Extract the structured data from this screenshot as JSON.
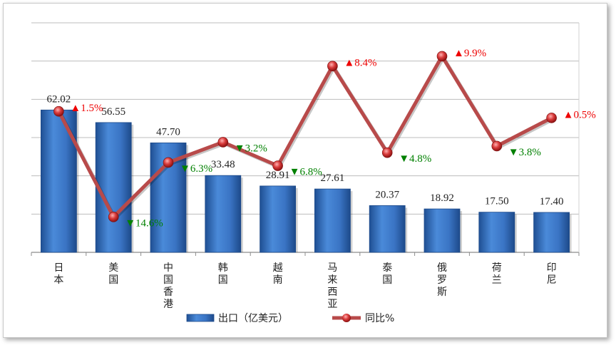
{
  "chart_data": {
    "type": "bar",
    "categories": [
      [
        "日",
        "本"
      ],
      [
        "美",
        "国"
      ],
      [
        "中",
        "国",
        "香",
        "港"
      ],
      [
        "韩",
        "国"
      ],
      [
        "越",
        "南"
      ],
      [
        "马",
        "来",
        "西",
        "亚"
      ],
      [
        "泰",
        "国"
      ],
      [
        "俄",
        "罗",
        "斯"
      ],
      [
        "荷",
        "兰"
      ],
      [
        "印",
        "尼"
      ]
    ],
    "series": [
      {
        "name": "出口（亿美元）",
        "type": "bar",
        "values": [
          62.02,
          56.55,
          47.7,
          33.48,
          28.91,
          27.61,
          20.37,
          18.92,
          17.5,
          17.4
        ],
        "labels": [
          "62.02",
          "56.55",
          "47.70",
          "33.48",
          "28.91",
          "27.61",
          "20.37",
          "18.92",
          "17.50",
          "17.40"
        ]
      },
      {
        "name": "同比%",
        "type": "line",
        "values": [
          1.5,
          -14.6,
          -6.3,
          -3.2,
          -6.8,
          8.4,
          -4.8,
          9.9,
          -3.8,
          0.5
        ],
        "labels": [
          "1.5%",
          "14.6%",
          "6.3%",
          "3.2%",
          "6.8%",
          "8.4%",
          "4.8%",
          "9.9%",
          "3.8%",
          "0.5%"
        ]
      }
    ],
    "ylim_bar": [
      0,
      100
    ],
    "ylim_line": [
      -20,
      15
    ],
    "grid": true,
    "legend": "bottom",
    "colors": {
      "bar": "#3a78c9",
      "line": "#b84a4a",
      "marker": "#cc3333",
      "up": "#ee0000",
      "down": "#008000"
    }
  },
  "legend": {
    "bar_label": "出口（亿美元）",
    "line_label": "同比%"
  }
}
